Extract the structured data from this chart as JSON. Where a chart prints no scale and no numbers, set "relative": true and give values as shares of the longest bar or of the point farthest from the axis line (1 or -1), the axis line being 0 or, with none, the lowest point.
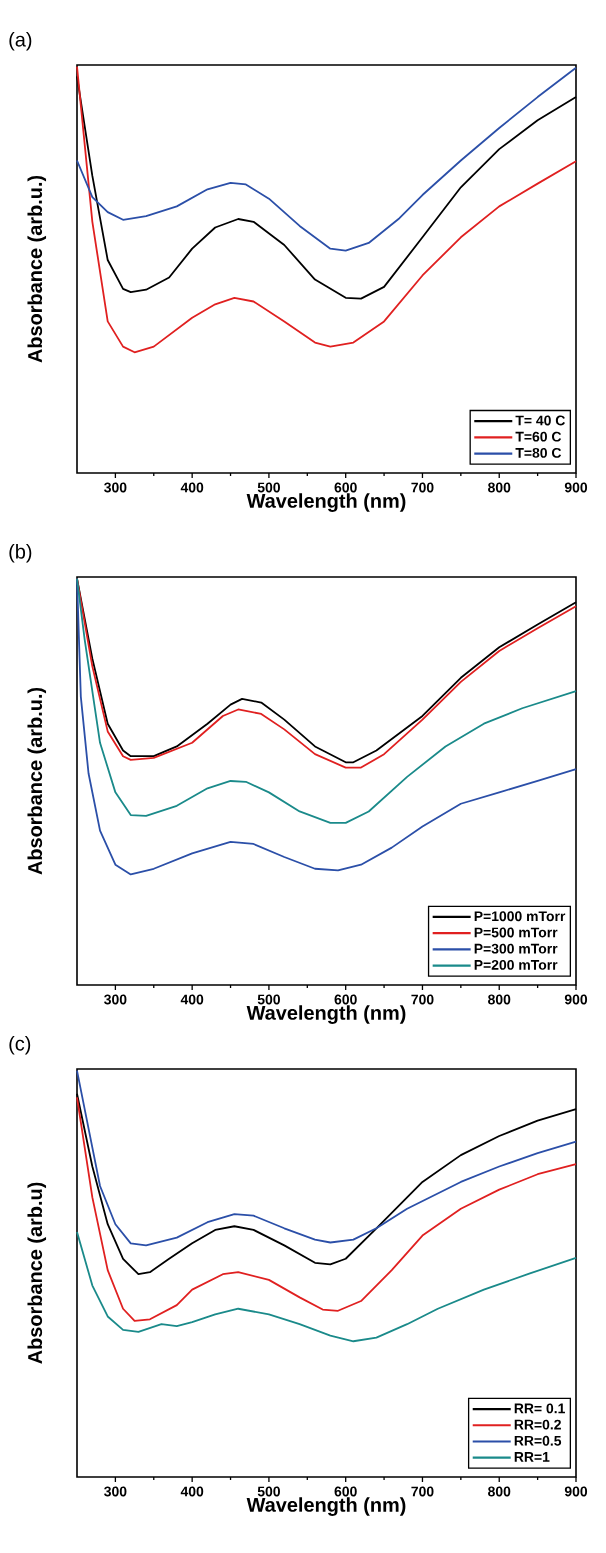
{
  "chart_data": [
    {
      "type": "line",
      "title": "(a)",
      "xlabel": "Wavelength (nm)",
      "ylabel": "Absorbance (arb.u.)",
      "relative": true,
      "legend": "bottom right",
      "xlim": [
        250,
        900
      ],
      "xticks": [
        300,
        400,
        500,
        600,
        700,
        800,
        900
      ],
      "series": [
        {
          "name": "T= 40 C",
          "color": "#000000",
          "x": [
            250,
            270,
            290,
            310,
            320,
            340,
            370,
            400,
            430,
            460,
            480,
            520,
            560,
            600,
            620,
            650,
            700,
            750,
            800,
            850,
            900
          ],
          "values": [
            0.976,
            0.731,
            0.524,
            0.453,
            0.445,
            0.451,
            0.481,
            0.552,
            0.604,
            0.625,
            0.618,
            0.561,
            0.476,
            0.431,
            0.429,
            0.458,
            0.58,
            0.703,
            0.797,
            0.868,
            0.925
          ]
        },
        {
          "name": "T=60 C",
          "color": "#e02020",
          "x": [
            250,
            270,
            290,
            310,
            325,
            350,
            400,
            430,
            455,
            480,
            520,
            560,
            580,
            610,
            650,
            700,
            750,
            800,
            850,
            900
          ],
          "values": [
            1.0,
            0.618,
            0.373,
            0.311,
            0.297,
            0.311,
            0.382,
            0.415,
            0.431,
            0.422,
            0.373,
            0.321,
            0.311,
            0.321,
            0.373,
            0.486,
            0.58,
            0.656,
            0.712,
            0.767
          ]
        },
        {
          "name": "T=80 C",
          "color": "#2b4fa8",
          "x": [
            250,
            270,
            290,
            310,
            340,
            380,
            420,
            450,
            470,
            500,
            540,
            580,
            600,
            630,
            670,
            700,
            750,
            800,
            850,
            900
          ],
          "values": [
            0.769,
            0.679,
            0.642,
            0.623,
            0.632,
            0.656,
            0.698,
            0.714,
            0.71,
            0.675,
            0.608,
            0.552,
            0.547,
            0.566,
            0.627,
            0.684,
            0.769,
            0.849,
            0.925,
            0.997
          ]
        }
      ]
    },
    {
      "type": "line",
      "title": "(b)",
      "xlabel": "Wavelength (nm)",
      "ylabel": "Absorbance (arb.u.)",
      "relative": true,
      "legend": "bottom right",
      "xlim": [
        250,
        900
      ],
      "xticks": [
        300,
        400,
        500,
        600,
        700,
        800,
        900
      ],
      "series": [
        {
          "name": "P=1000 mTorr",
          "color": "#000000",
          "x": [
            250,
            270,
            290,
            310,
            320,
            350,
            380,
            420,
            450,
            465,
            490,
            520,
            560,
            600,
            610,
            640,
            700,
            750,
            800,
            850,
            900
          ],
          "values": [
            1.0,
            0.803,
            0.643,
            0.577,
            0.563,
            0.563,
            0.587,
            0.643,
            0.69,
            0.704,
            0.695,
            0.653,
            0.587,
            0.548,
            0.548,
            0.577,
            0.662,
            0.756,
            0.831,
            0.887,
            0.942
          ]
        },
        {
          "name": "P=500 mTorr",
          "color": "#e02020",
          "x": [
            250,
            270,
            290,
            310,
            320,
            350,
            400,
            440,
            460,
            490,
            520,
            560,
            600,
            620,
            650,
            700,
            750,
            800,
            850,
            900
          ],
          "values": [
            1.0,
            0.784,
            0.624,
            0.563,
            0.554,
            0.559,
            0.596,
            0.662,
            0.678,
            0.667,
            0.629,
            0.568,
            0.535,
            0.535,
            0.568,
            0.653,
            0.746,
            0.822,
            0.878,
            0.932
          ]
        },
        {
          "name": "P=300 mTorr",
          "color": "#2b4fa8",
          "x": [
            250,
            255,
            265,
            280,
            300,
            320,
            350,
            400,
            450,
            480,
            520,
            560,
            590,
            620,
            660,
            700,
            750,
            800,
            850,
            900
          ],
          "values": [
            1.0,
            0.709,
            0.521,
            0.38,
            0.296,
            0.272,
            0.286,
            0.324,
            0.352,
            0.347,
            0.315,
            0.286,
            0.282,
            0.296,
            0.338,
            0.39,
            0.446,
            0.474,
            0.502,
            0.531
          ]
        },
        {
          "name": "P=200 mTorr",
          "color": "#1a8a8a",
          "x": [
            250,
            260,
            280,
            300,
            320,
            340,
            380,
            420,
            450,
            470,
            500,
            540,
            580,
            600,
            630,
            680,
            730,
            780,
            830,
            900
          ],
          "values": [
            1.0,
            0.85,
            0.596,
            0.474,
            0.418,
            0.416,
            0.441,
            0.484,
            0.502,
            0.5,
            0.474,
            0.427,
            0.399,
            0.399,
            0.427,
            0.512,
            0.587,
            0.643,
            0.681,
            0.723
          ]
        }
      ]
    },
    {
      "type": "line",
      "title": "(c)",
      "xlabel": "Wavelength (nm)",
      "ylabel": "Absorbance (arb.u)",
      "relative": true,
      "legend": "bottom right",
      "xlim": [
        250,
        900
      ],
      "xticks": [
        300,
        400,
        500,
        600,
        700,
        800,
        900
      ],
      "series": [
        {
          "name": "RR= 0.1",
          "color": "#000000",
          "x": [
            250,
            270,
            290,
            310,
            330,
            345,
            370,
            400,
            430,
            455,
            480,
            520,
            560,
            580,
            600,
            640,
            700,
            750,
            800,
            850,
            900
          ],
          "values": [
            0.943,
            0.764,
            0.622,
            0.537,
            0.499,
            0.504,
            0.537,
            0.575,
            0.608,
            0.617,
            0.608,
            0.57,
            0.527,
            0.523,
            0.537,
            0.612,
            0.726,
            0.792,
            0.839,
            0.877,
            0.905
          ]
        },
        {
          "name": "RR=0.2",
          "color": "#e02020",
          "x": [
            250,
            270,
            290,
            310,
            325,
            345,
            380,
            400,
            440,
            460,
            500,
            540,
            570,
            590,
            620,
            660,
            700,
            750,
            800,
            850,
            900
          ],
          "values": [
            0.934,
            0.688,
            0.509,
            0.414,
            0.384,
            0.388,
            0.423,
            0.461,
            0.499,
            0.504,
            0.485,
            0.442,
            0.412,
            0.409,
            0.433,
            0.509,
            0.594,
            0.66,
            0.707,
            0.745,
            0.77
          ]
        },
        {
          "name": "RR=0.5",
          "color": "#2b4fa8",
          "x": [
            250,
            265,
            280,
            300,
            320,
            340,
            380,
            420,
            455,
            480,
            520,
            560,
            580,
            610,
            640,
            680,
            750,
            800,
            850,
            900
          ],
          "values": [
            1.0,
            0.858,
            0.716,
            0.622,
            0.575,
            0.57,
            0.589,
            0.627,
            0.647,
            0.643,
            0.612,
            0.584,
            0.577,
            0.584,
            0.612,
            0.66,
            0.726,
            0.764,
            0.797,
            0.825
          ]
        },
        {
          "name": "RR=1",
          "color": "#1a8a8a",
          "x": [
            250,
            270,
            290,
            310,
            330,
            360,
            380,
            400,
            430,
            460,
            500,
            540,
            580,
            610,
            640,
            680,
            720,
            780,
            840,
            900
          ],
          "values": [
            0.603,
            0.471,
            0.395,
            0.362,
            0.357,
            0.376,
            0.371,
            0.381,
            0.4,
            0.414,
            0.4,
            0.376,
            0.348,
            0.334,
            0.343,
            0.376,
            0.414,
            0.461,
            0.501,
            0.539
          ]
        }
      ]
    }
  ]
}
